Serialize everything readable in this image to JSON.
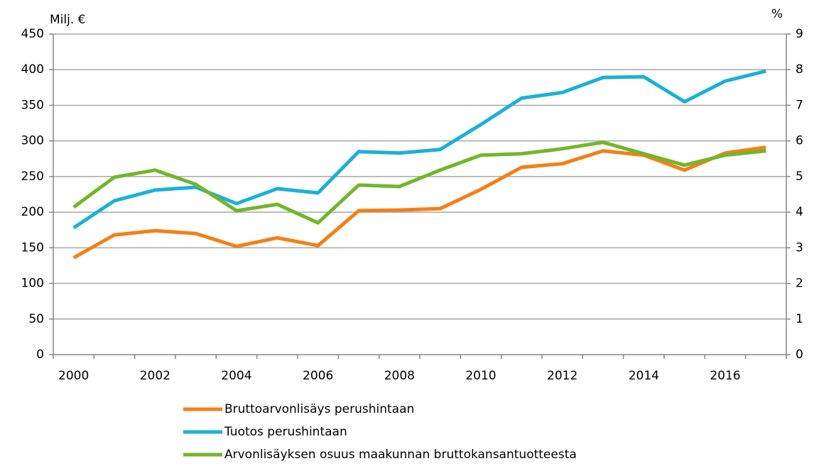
{
  "chart_data": {
    "type": "line",
    "categories": [
      "2000",
      null,
      "2002",
      null,
      "2004",
      null,
      "2006",
      null,
      "2008",
      null,
      "2010",
      null,
      "2012",
      null,
      "2014",
      null,
      "2016",
      null
    ],
    "ylabel": "Milj. €",
    "y2label": "%",
    "ylim": [
      0,
      450
    ],
    "yticks": [
      0,
      50,
      100,
      150,
      200,
      250,
      300,
      350,
      400,
      450
    ],
    "y2lim": [
      0,
      9
    ],
    "y2ticks": [
      0,
      1,
      2,
      3,
      4,
      5,
      6,
      7,
      8,
      9
    ],
    "grid": true,
    "legend": "bottom",
    "series": [
      {
        "name": "Bruttoarvonlisäys perushintaan",
        "color": "#f47f17",
        "values": [
          136,
          168,
          174,
          170,
          152,
          164,
          153,
          202,
          203,
          205,
          232,
          263,
          268,
          286,
          280,
          259,
          283,
          291
        ]
      },
      {
        "name": "Tuotos perushintaan",
        "color": "#1cb0d8",
        "values": [
          178,
          216,
          231,
          235,
          212,
          233,
          227,
          285,
          283,
          288,
          323,
          360,
          368,
          389,
          390,
          355,
          384,
          398
        ]
      },
      {
        "name": "Arvonlisäyksen osuus maakunnan bruttokansantuotteesta",
        "color": "#72b62c",
        "axis": "y2",
        "values": [
          4.14,
          4.98,
          5.18,
          4.78,
          4.04,
          4.22,
          3.7,
          4.76,
          4.72,
          5.18,
          5.6,
          5.64,
          5.78,
          5.96,
          5.64,
          5.32,
          5.6,
          5.72
        ]
      }
    ]
  }
}
